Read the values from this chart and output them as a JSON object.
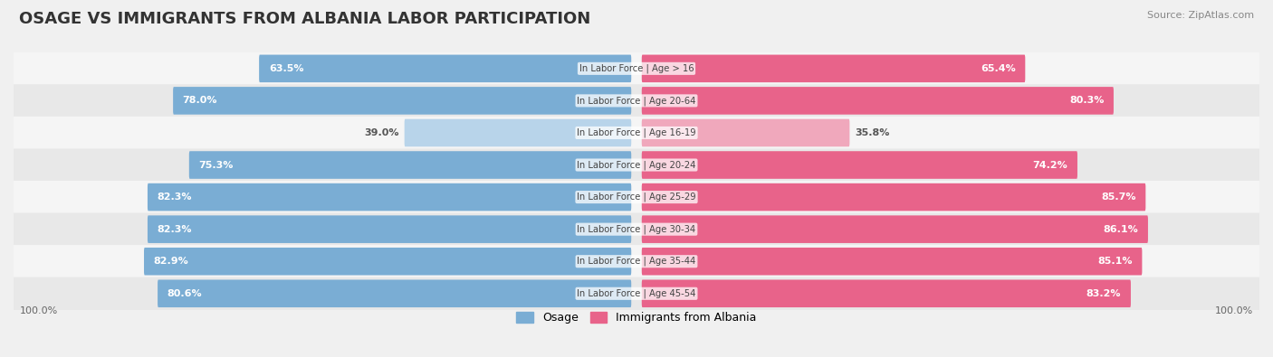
{
  "title": "OSAGE VS IMMIGRANTS FROM ALBANIA LABOR PARTICIPATION",
  "source": "Source: ZipAtlas.com",
  "categories": [
    "In Labor Force | Age > 16",
    "In Labor Force | Age 20-64",
    "In Labor Force | Age 16-19",
    "In Labor Force | Age 20-24",
    "In Labor Force | Age 25-29",
    "In Labor Force | Age 30-34",
    "In Labor Force | Age 35-44",
    "In Labor Force | Age 45-54"
  ],
  "osage_values": [
    63.5,
    78.0,
    39.0,
    75.3,
    82.3,
    82.3,
    82.9,
    80.6
  ],
  "albania_values": [
    65.4,
    80.3,
    35.8,
    74.2,
    85.7,
    86.1,
    85.1,
    83.2
  ],
  "osage_color": "#7aadd4",
  "osage_light_color": "#b8d4ea",
  "albania_color": "#e8638a",
  "albania_light_color": "#f0a8bc",
  "background_color": "#f0f0f0",
  "row_bg_colors": [
    "#f5f5f5",
    "#e8e8e8"
  ],
  "max_value": 100.0,
  "legend_osage": "Osage",
  "legend_albania": "Immigrants from Albania",
  "label_fontsize": 8.5,
  "title_fontsize": 13
}
